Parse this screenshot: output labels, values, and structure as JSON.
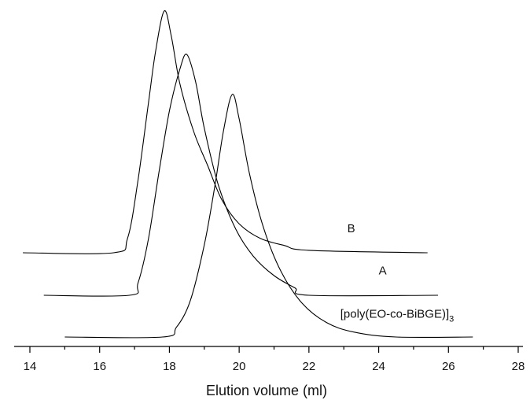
{
  "chart_data": {
    "type": "line",
    "title": "",
    "xlabel": "Elution volume (ml)",
    "ylabel": "",
    "xlim": [
      13.6,
      28
    ],
    "x_major_ticks": [
      14,
      16,
      18,
      20,
      22,
      24,
      26,
      28
    ],
    "x_minor_ticks": [
      15,
      17,
      19,
      21,
      23,
      25,
      27
    ],
    "y_axis_shown": false,
    "grid": false,
    "legend": "none",
    "series": [
      {
        "name": "B",
        "label_at": [
          23.1,
          0.065
        ],
        "points": [
          [
            13.8,
            0.0
          ],
          [
            16.4,
            0.0
          ],
          [
            16.8,
            0.06
          ],
          [
            17.1,
            0.3
          ],
          [
            17.4,
            0.62
          ],
          [
            17.6,
            0.83
          ],
          [
            17.85,
            1.0
          ],
          [
            18.05,
            0.9
          ],
          [
            18.3,
            0.7
          ],
          [
            18.7,
            0.5
          ],
          [
            19.1,
            0.36
          ],
          [
            19.5,
            0.22
          ],
          [
            20.0,
            0.12
          ],
          [
            20.6,
            0.06
          ],
          [
            21.3,
            0.03
          ],
          [
            22.0,
            0.01
          ],
          [
            25.4,
            0.0
          ]
        ]
      },
      {
        "name": "A",
        "label_at": [
          24.0,
          0.065
        ],
        "points": [
          [
            14.4,
            0.0
          ],
          [
            16.85,
            0.0
          ],
          [
            17.1,
            0.05
          ],
          [
            17.4,
            0.23
          ],
          [
            17.7,
            0.5
          ],
          [
            18.0,
            0.75
          ],
          [
            18.3,
            0.92
          ],
          [
            18.5,
            0.98
          ],
          [
            18.75,
            0.87
          ],
          [
            19.0,
            0.68
          ],
          [
            19.4,
            0.45
          ],
          [
            19.9,
            0.27
          ],
          [
            20.4,
            0.16
          ],
          [
            21.0,
            0.08
          ],
          [
            21.6,
            0.03
          ],
          [
            22.0,
            0.0
          ],
          [
            25.7,
            0.0
          ]
        ]
      },
      {
        "name": "[poly(EO-co-BiBGE)]",
        "name_subscript": "3",
        "label_at": [
          22.9,
          0.06
        ],
        "points": [
          [
            15.0,
            0.0
          ],
          [
            17.8,
            0.0
          ],
          [
            18.2,
            0.04
          ],
          [
            18.6,
            0.15
          ],
          [
            19.0,
            0.38
          ],
          [
            19.3,
            0.62
          ],
          [
            19.55,
            0.85
          ],
          [
            19.8,
            1.0
          ],
          [
            20.0,
            0.9
          ],
          [
            20.3,
            0.67
          ],
          [
            20.7,
            0.45
          ],
          [
            21.2,
            0.27
          ],
          [
            21.8,
            0.14
          ],
          [
            22.5,
            0.06
          ],
          [
            23.3,
            0.02
          ],
          [
            24.5,
            0.0
          ],
          [
            26.7,
            0.0
          ]
        ]
      }
    ]
  }
}
